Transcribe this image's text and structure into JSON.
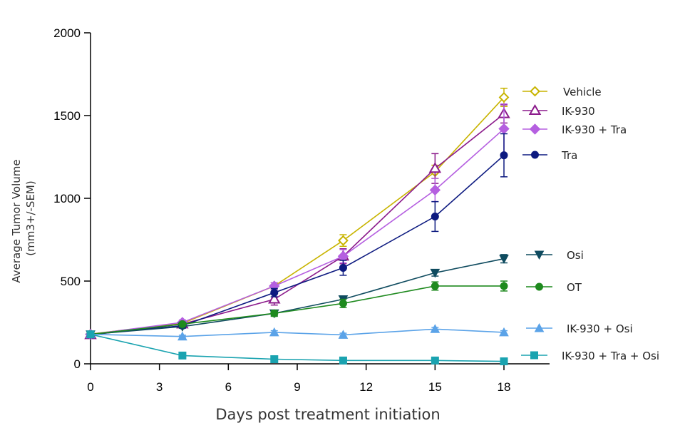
{
  "chart_data": {
    "type": "line",
    "title": "",
    "xlabel": "Days post treatment initiation",
    "ylabel_line1": "Average  Tumor Volume",
    "ylabel_line2": "(mm3+/-SEM)",
    "xlim": [
      0,
      20
    ],
    "ylim": [
      0,
      2000
    ],
    "x_ticks": [
      0,
      3,
      6,
      9,
      12,
      15,
      18
    ],
    "y_ticks": [
      0,
      500,
      1000,
      1500,
      2000
    ],
    "grid": false,
    "legend_position": "right",
    "series": [
      {
        "name": "Vehicle",
        "color": "#c8b400",
        "marker": "diamond-open",
        "x": [
          0,
          4,
          8,
          11,
          15,
          18
        ],
        "y": [
          180,
          245,
          470,
          745,
          1160,
          1610
        ],
        "err": [
          0,
          15,
          20,
          35,
          40,
          55
        ]
      },
      {
        "name": "IK-930",
        "color": "#8b1a8b",
        "marker": "triangle-open",
        "x": [
          0,
          4,
          8,
          11,
          15,
          18
        ],
        "y": [
          175,
          240,
          390,
          650,
          1180,
          1510
        ],
        "err": [
          0,
          15,
          35,
          45,
          90,
          55
        ]
      },
      {
        "name": "IK-930 + Tra",
        "color": "#b55fe0",
        "marker": "diamond-filled",
        "x": [
          0,
          4,
          8,
          11,
          15,
          18
        ],
        "y": [
          178,
          250,
          470,
          650,
          1050,
          1420
        ],
        "err": [
          0,
          15,
          20,
          40,
          70,
          150
        ]
      },
      {
        "name": "Tra",
        "color": "#0d1a80",
        "marker": "circle-filled",
        "x": [
          0,
          4,
          8,
          11,
          15,
          18
        ],
        "y": [
          178,
          230,
          430,
          580,
          890,
          1260
        ],
        "err": [
          0,
          12,
          25,
          45,
          90,
          130
        ]
      },
      {
        "name": "Osi",
        "color": "#0f4b5f",
        "marker": "triangle-down-filled",
        "x": [
          0,
          4,
          8,
          11,
          15,
          18
        ],
        "y": [
          178,
          225,
          305,
          390,
          550,
          635
        ],
        "err": [
          0,
          10,
          15,
          20,
          20,
          25
        ]
      },
      {
        "name": "OT",
        "color": "#1e8a1e",
        "marker": "circle-filled",
        "x": [
          0,
          4,
          8,
          11,
          15,
          18
        ],
        "y": [
          178,
          240,
          305,
          365,
          470,
          470
        ],
        "err": [
          0,
          12,
          18,
          25,
          25,
          30
        ]
      },
      {
        "name": "IK-930 + Osi",
        "color": "#5ba3e8",
        "marker": "triangle-filled",
        "x": [
          0,
          4,
          8,
          11,
          15,
          18
        ],
        "y": [
          178,
          165,
          190,
          175,
          210,
          190
        ],
        "err": [
          0,
          8,
          10,
          10,
          10,
          10
        ]
      },
      {
        "name": "IK-930 + Tra + Osi",
        "color": "#1aa3b0",
        "marker": "square-filled",
        "x": [
          0,
          4,
          8,
          11,
          15,
          18
        ],
        "y": [
          178,
          50,
          28,
          20,
          20,
          15
        ],
        "err": [
          0,
          5,
          5,
          3,
          3,
          3
        ]
      }
    ]
  }
}
